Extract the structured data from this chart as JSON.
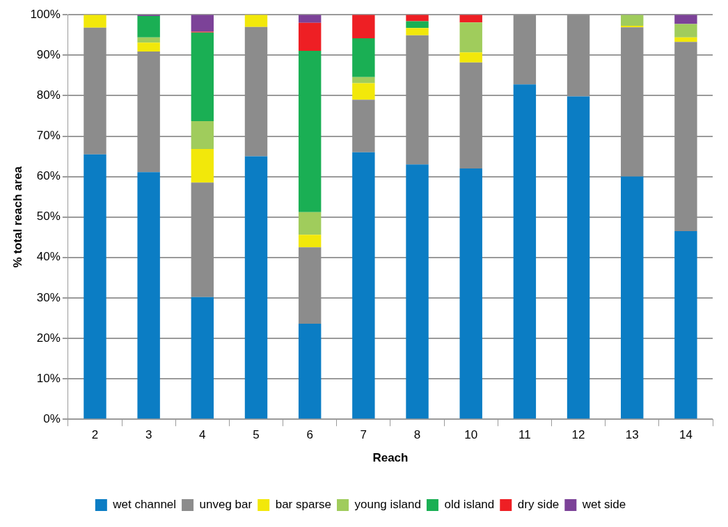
{
  "chart_data": {
    "type": "bar",
    "stacked": true,
    "xlabel": "Reach",
    "ylabel": "% total reach area",
    "categories": [
      "2",
      "3",
      "4",
      "5",
      "6",
      "7",
      "8",
      "10",
      "11",
      "12",
      "13",
      "14"
    ],
    "series": [
      {
        "name": "wet channel",
        "color": "#0b7dc4",
        "values": [
          65.5,
          61.1,
          30.2,
          65,
          23.6,
          66,
          63,
          62,
          82.8,
          79.8,
          60,
          46.5
        ]
      },
      {
        "name": "unveg bar",
        "color": "#8c8c8c",
        "values": [
          31.3,
          29.8,
          28.3,
          32,
          18.9,
          13,
          31.9,
          26.2,
          17.2,
          20.2,
          36.9,
          46.8
        ]
      },
      {
        "name": "bar sparse",
        "color": "#f2e80a",
        "values": [
          3.2,
          2.2,
          8.3,
          3,
          3.1,
          4.1,
          1.8,
          2.5,
          0,
          0,
          0.4,
          1.1
        ]
      },
      {
        "name": "young island",
        "color": "#a0cc5c",
        "values": [
          0,
          1.3,
          6.9,
          0,
          5.6,
          1.5,
          0,
          7.4,
          0,
          0,
          2.7,
          3.3
        ]
      },
      {
        "name": "old island",
        "color": "#1aaf54",
        "values": [
          0,
          5.3,
          21.9,
          0,
          39.9,
          9.6,
          1.7,
          0,
          0,
          0,
          0,
          0
        ]
      },
      {
        "name": "dry side",
        "color": "#ee1f24",
        "values": [
          0,
          0,
          0.2,
          0,
          6.9,
          5.8,
          1.6,
          1.9,
          0,
          0,
          0,
          0
        ]
      },
      {
        "name": "wet side",
        "color": "#7c4298",
        "values": [
          0,
          0.3,
          4.2,
          0,
          2,
          0,
          0,
          0,
          0,
          0,
          0,
          2.3
        ]
      }
    ],
    "ylim": [
      0,
      100
    ],
    "yticks": [
      {
        "value": 0,
        "label": "0%"
      },
      {
        "value": 10,
        "label": "10%"
      },
      {
        "value": 20,
        "label": "20%"
      },
      {
        "value": 30,
        "label": "30%"
      },
      {
        "value": 40,
        "label": "40%"
      },
      {
        "value": 50,
        "label": "50%"
      },
      {
        "value": 60,
        "label": "60%"
      },
      {
        "value": 70,
        "label": "70%"
      },
      {
        "value": 80,
        "label": "80%"
      },
      {
        "value": 90,
        "label": "90%"
      },
      {
        "value": 100,
        "label": "100%"
      }
    ],
    "grid": "y",
    "legend": "bottom"
  }
}
